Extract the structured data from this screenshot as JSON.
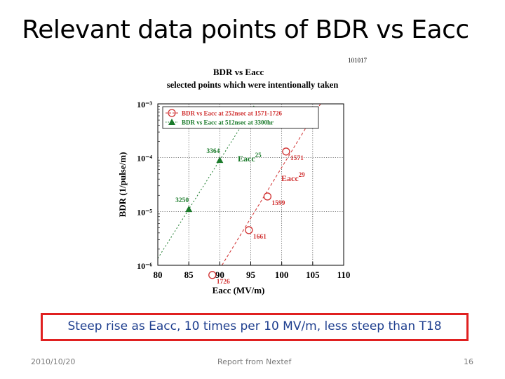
{
  "slide": {
    "title": "Relevant data points of BDR vs Eacc",
    "caption": "Steep rise as Eacc, 10 times per 10 MV/m, less steep than T18",
    "footer_date": "2010/10/20",
    "footer_center": "Report from Nextef",
    "page_number": "16"
  },
  "chart_data": {
    "type": "scatter",
    "figure_id": "101017",
    "title": "BDR vs Eacc",
    "subtitle": "selected  points which were intentionally taken",
    "xlabel": "Eacc (MV/m)",
    "ylabel": "BDR (1/pulse/m)",
    "xlim": [
      80,
      110
    ],
    "ylog": true,
    "ylim_exp": [
      -6,
      -3
    ],
    "x_ticks": [
      80,
      85,
      90,
      95,
      100,
      105,
      110
    ],
    "y_ticks": [
      {
        "exp": -3,
        "label": "10⁻³"
      },
      {
        "exp": -4,
        "label": "10⁻⁴"
      },
      {
        "exp": -5,
        "label": "10⁻⁵"
      },
      {
        "exp": -6,
        "label": "10⁻⁶"
      }
    ],
    "grid": true,
    "legend_position": "top-left",
    "series": [
      {
        "name": "BDR vs Eacc at 252nsec at 1571-1726",
        "marker": "open-circle",
        "color": "#d03030",
        "points": [
          {
            "x": 88.8,
            "y": 6.6e-07,
            "label": "1726"
          },
          {
            "x": 94.7,
            "y": 4.5e-06,
            "label": "1661"
          },
          {
            "x": 97.7,
            "y": 1.9e-05,
            "label": "1599"
          },
          {
            "x": 100.7,
            "y": 0.00013,
            "label": "1571"
          }
        ],
        "fit_label": "Eacc",
        "fit_exponent": "29"
      },
      {
        "name": "BDR vs Eacc at 512nsec at 3300hr",
        "marker": "filled-triangle",
        "color": "#1a7a2a",
        "points": [
          {
            "x": 85.0,
            "y": 1.1e-05,
            "label": "3250"
          },
          {
            "x": 90.0,
            "y": 9e-05,
            "label": "3364"
          }
        ],
        "fit_label": "Eacc",
        "fit_exponent": "25"
      }
    ]
  }
}
